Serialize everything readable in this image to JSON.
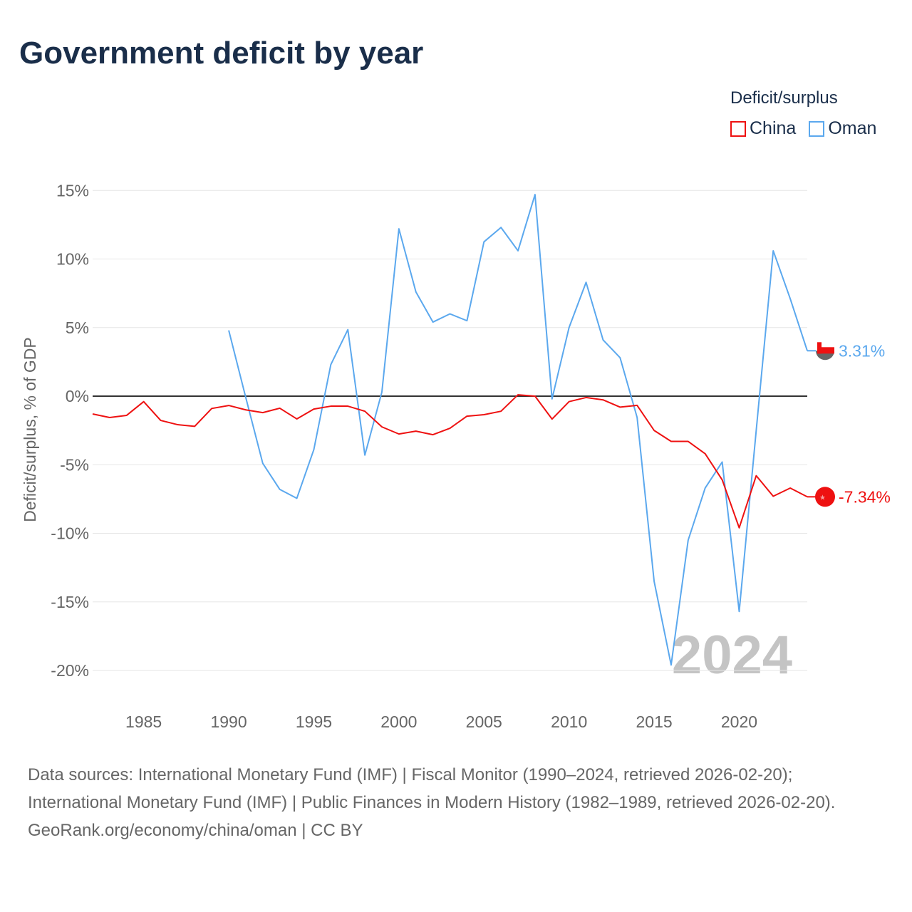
{
  "title": "Government deficit by year",
  "legend": {
    "title": "Deficit/surplus",
    "items": [
      {
        "name": "China",
        "color": "#ee1111"
      },
      {
        "name": "Oman",
        "color": "#5ba8ee"
      }
    ]
  },
  "footer": {
    "sources": "Data sources: International Monetary Fund (IMF) | Fiscal Monitor (1990–2024, retrieved 2026-02-20); International Monetary Fund (IMF) | Public Finances in Modern History (1982–1989, retrieved 2026-02-20).",
    "credit": "GeoRank.org/economy/china/oman | CC BY"
  },
  "chart_data": {
    "type": "line",
    "title": "Government deficit by year",
    "ylabel": "Deficit/surplus, % of GDP",
    "xlabel": "",
    "ylim": [
      -22,
      16
    ],
    "xlim": [
      1982,
      2024
    ],
    "yticks": [
      15,
      10,
      5,
      0,
      -5,
      -10,
      -15,
      -20
    ],
    "ytick_labels": [
      "15%",
      "10%",
      "5%",
      "0%",
      "-5%",
      "-10%",
      "-15%",
      "-20%"
    ],
    "xticks": [
      1985,
      1990,
      1995,
      2000,
      2005,
      2010,
      2015,
      2020
    ],
    "xtick_labels": [
      "1985",
      "1990",
      "1995",
      "2000",
      "2005",
      "2010",
      "2015",
      "2020"
    ],
    "grid": true,
    "legend_position": "top-right",
    "watermark_year": "2024",
    "series": [
      {
        "name": "China",
        "color": "#ee1111",
        "end_label": "-7.34%",
        "start_year": 1982,
        "values": [
          -1.3,
          -1.56,
          -1.4,
          -0.4,
          -1.77,
          -2.08,
          -2.2,
          -0.9,
          -0.68,
          -1.0,
          -1.2,
          -0.88,
          -1.66,
          -0.94,
          -0.73,
          -0.73,
          -1.1,
          -2.24,
          -2.76,
          -2.55,
          -2.81,
          -2.34,
          -1.46,
          -1.35,
          -1.1,
          0.1,
          0.0,
          -1.67,
          -0.4,
          -0.1,
          -0.27,
          -0.8,
          -0.67,
          -2.5,
          -3.3,
          -3.3,
          -4.2,
          -6.1,
          -9.6,
          -5.8,
          -7.3,
          -6.7,
          -7.34
        ]
      },
      {
        "name": "Oman",
        "color": "#5ba8ee",
        "end_label": "3.31%",
        "start_year": 1990,
        "values": [
          4.8,
          -0.1,
          -4.9,
          -6.8,
          -7.45,
          -3.9,
          2.3,
          4.85,
          -4.3,
          0.3,
          12.2,
          7.6,
          5.4,
          6.0,
          5.5,
          11.25,
          12.3,
          10.6,
          14.7,
          -0.2,
          5.0,
          8.3,
          4.1,
          2.8,
          -1.55,
          -13.5,
          -19.6,
          -10.5,
          -6.7,
          -4.8,
          -15.7,
          -2.5,
          10.6,
          7.1,
          3.31
        ]
      }
    ]
  }
}
